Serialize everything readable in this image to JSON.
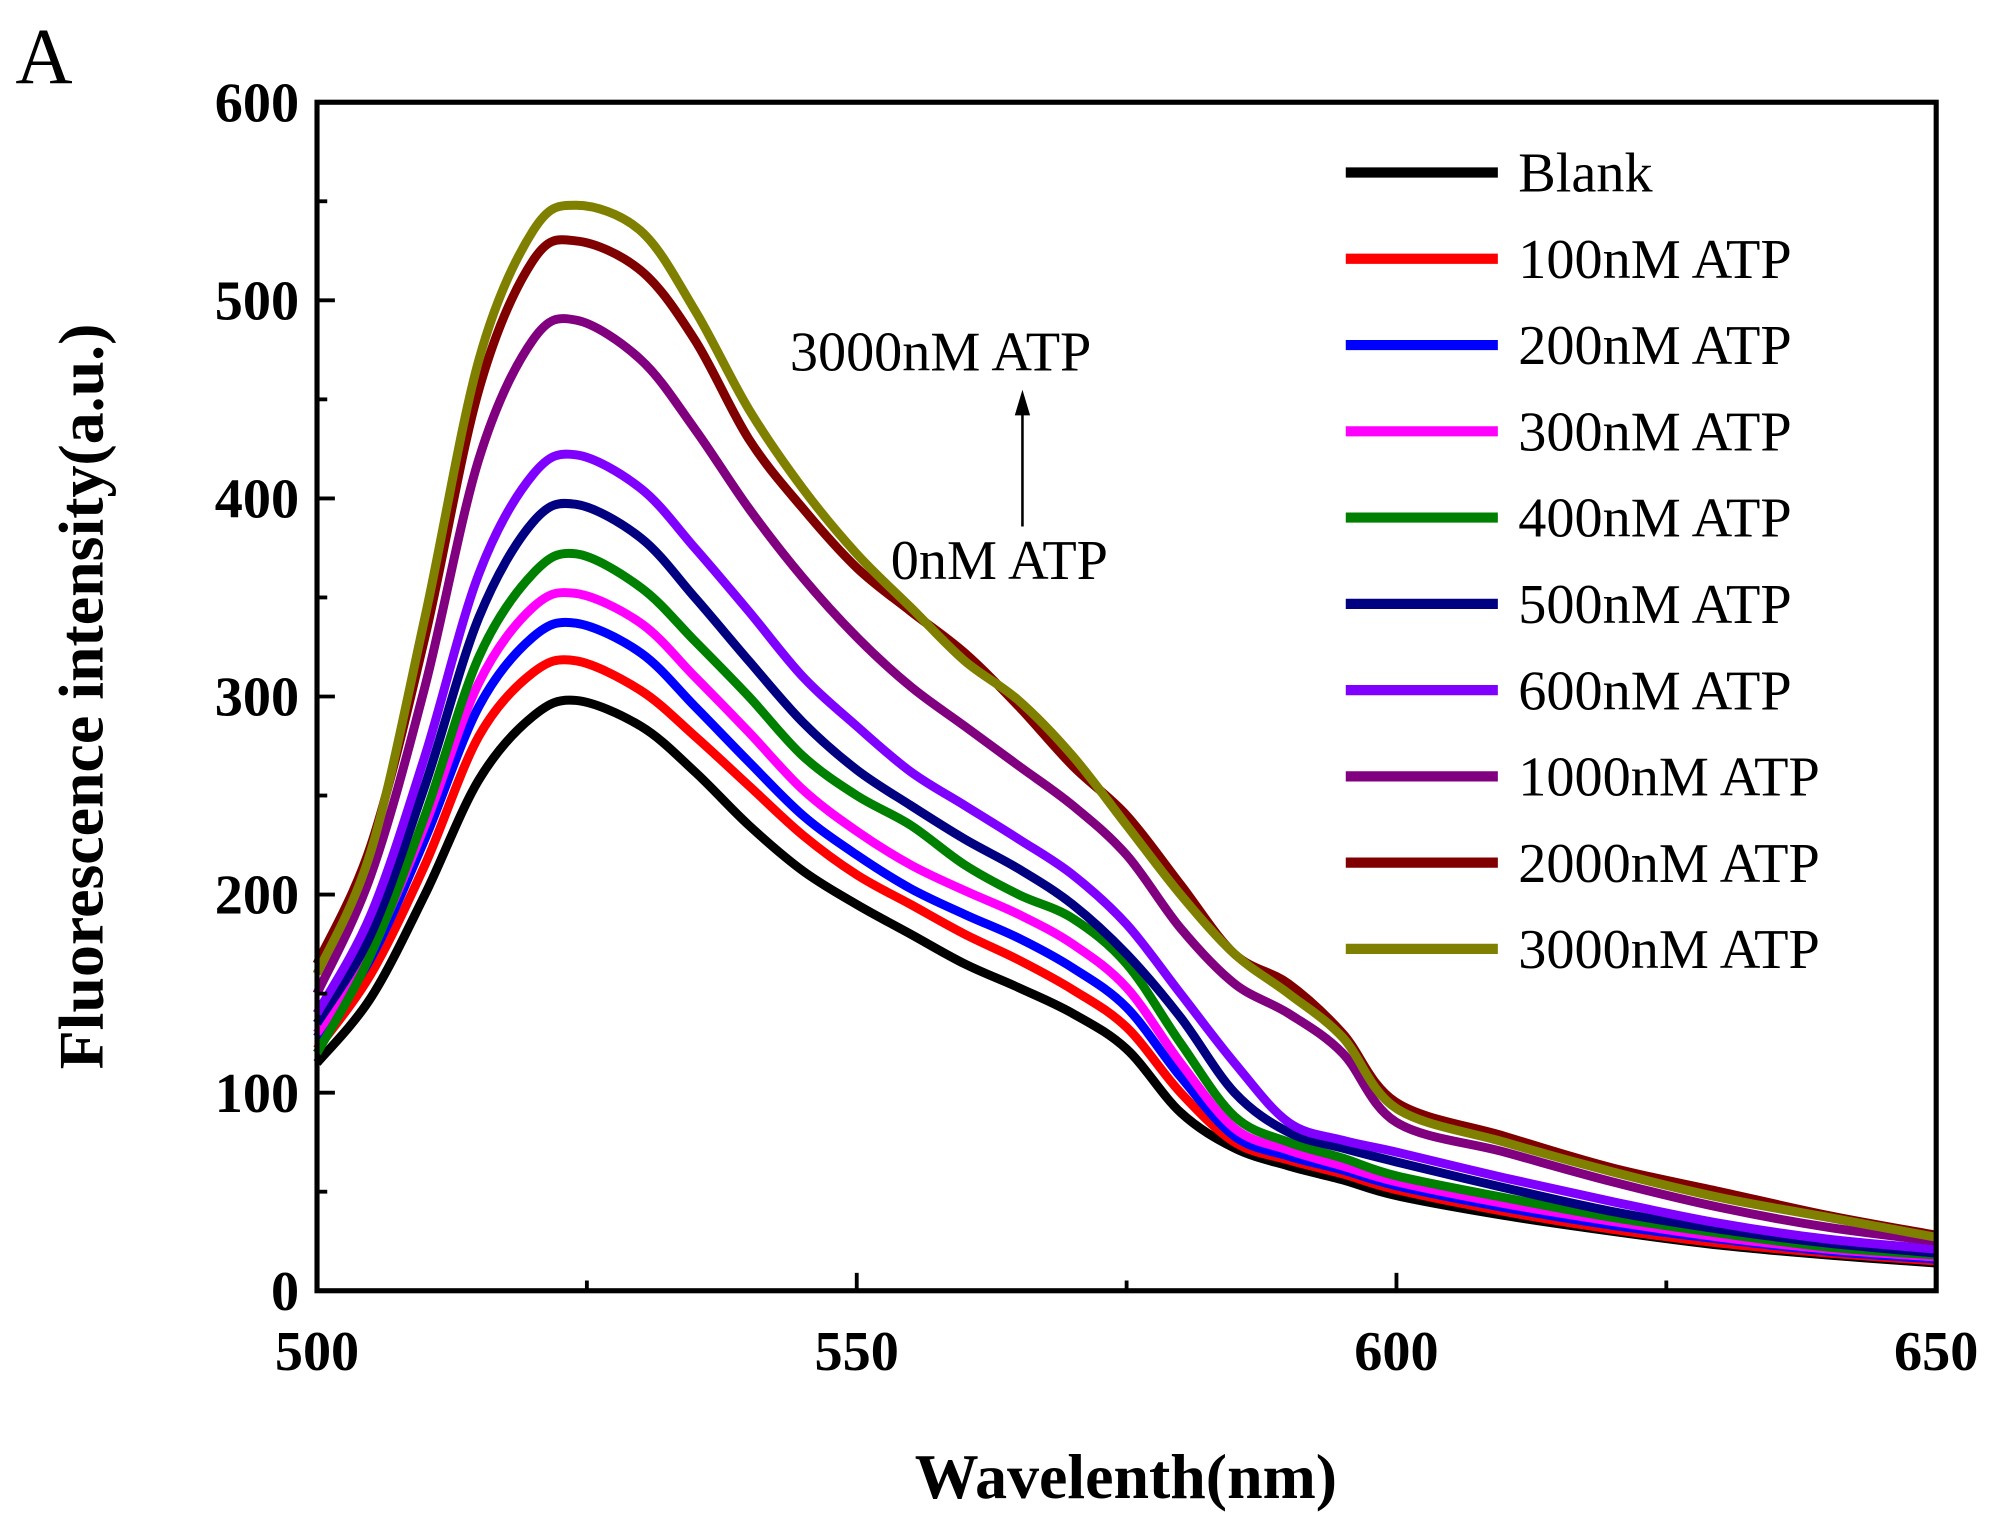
{
  "chart_data": {
    "type": "line",
    "panel_label": "A",
    "xlabel": "Wavelenth(nm)",
    "ylabel": "Fluorescence intensity(a.u.)",
    "xlim": [
      500,
      650
    ],
    "ylim": [
      0,
      600
    ],
    "xticks": [
      500,
      550,
      600,
      650
    ],
    "yticks": [
      0,
      100,
      200,
      300,
      400,
      500,
      600
    ],
    "legend_position": "top-right",
    "annotations": {
      "top": "3000nM ATP",
      "bottom": "0nM ATP"
    },
    "x": [
      500,
      505,
      510,
      515,
      520,
      524,
      530,
      535,
      540,
      545,
      550,
      555,
      560,
      565,
      570,
      575,
      580,
      585,
      590,
      595,
      600,
      610,
      620,
      630,
      640,
      650
    ],
    "series": [
      {
        "name": "Blank",
        "color": "#000000",
        "values": [
          115,
          148,
          200,
          258,
          290,
          298,
          285,
          262,
          235,
          212,
          195,
          180,
          165,
          153,
          140,
          122,
          90,
          72,
          63,
          56,
          48,
          38,
          30,
          23,
          18,
          14
        ]
      },
      {
        "name": "100nM ATP",
        "color": "#ff0000",
        "values": [
          122,
          160,
          215,
          280,
          312,
          318,
          303,
          280,
          255,
          230,
          210,
          195,
          180,
          167,
          152,
          133,
          100,
          75,
          66,
          59,
          51,
          40,
          31,
          24,
          19,
          15
        ]
      },
      {
        "name": "200nM ATP",
        "color": "#0000ff",
        "values": [
          128,
          168,
          228,
          295,
          330,
          337,
          322,
          295,
          267,
          240,
          220,
          203,
          190,
          178,
          163,
          143,
          108,
          78,
          68,
          61,
          53,
          42,
          33,
          26,
          20,
          16
        ]
      },
      {
        "name": "300nM ATP",
        "color": "#ff00ff",
        "values": [
          130,
          172,
          235,
          307,
          345,
          352,
          337,
          310,
          282,
          253,
          232,
          215,
          202,
          190,
          175,
          153,
          115,
          82,
          71,
          63,
          55,
          44,
          35,
          27,
          21,
          17
        ]
      },
      {
        "name": "400nM ATP",
        "color": "#008000",
        "values": [
          120,
          170,
          240,
          320,
          362,
          372,
          355,
          328,
          300,
          270,
          250,
          235,
          215,
          200,
          188,
          165,
          125,
          88,
          75,
          67,
          58,
          47,
          37,
          29,
          22,
          18
        ]
      },
      {
        "name": "500nM ATP",
        "color": "#000080",
        "values": [
          135,
          180,
          255,
          340,
          388,
          397,
          380,
          350,
          318,
          287,
          263,
          245,
          228,
          213,
          195,
          170,
          138,
          100,
          80,
          72,
          65,
          52,
          40,
          31,
          24,
          19
        ]
      },
      {
        "name": "600nM ATP",
        "color": "#8000ff",
        "values": [
          140,
          190,
          270,
          362,
          412,
          422,
          405,
          375,
          343,
          310,
          285,
          262,
          245,
          228,
          210,
          185,
          150,
          115,
          85,
          76,
          70,
          57,
          45,
          34,
          26,
          21
        ]
      },
      {
        "name": "1000nM ATP",
        "color": "#800080",
        "values": [
          150,
          210,
          305,
          420,
          480,
          490,
          470,
          435,
          395,
          360,
          330,
          305,
          285,
          265,
          245,
          220,
          183,
          155,
          140,
          120,
          85,
          70,
          55,
          42,
          32,
          25
        ]
      },
      {
        "name": "2000nM ATP",
        "color": "#800000",
        "values": [
          165,
          225,
          330,
          455,
          520,
          530,
          515,
          480,
          430,
          395,
          365,
          343,
          322,
          295,
          265,
          240,
          205,
          170,
          155,
          130,
          95,
          78,
          62,
          50,
          38,
          28
        ]
      },
      {
        "name": "3000nM ATP",
        "color": "#808000",
        "values": [
          160,
          222,
          340,
          470,
          535,
          548,
          535,
          495,
          445,
          405,
          372,
          345,
          318,
          298,
          270,
          235,
          200,
          170,
          150,
          128,
          92,
          75,
          60,
          47,
          37,
          27
        ]
      }
    ]
  }
}
